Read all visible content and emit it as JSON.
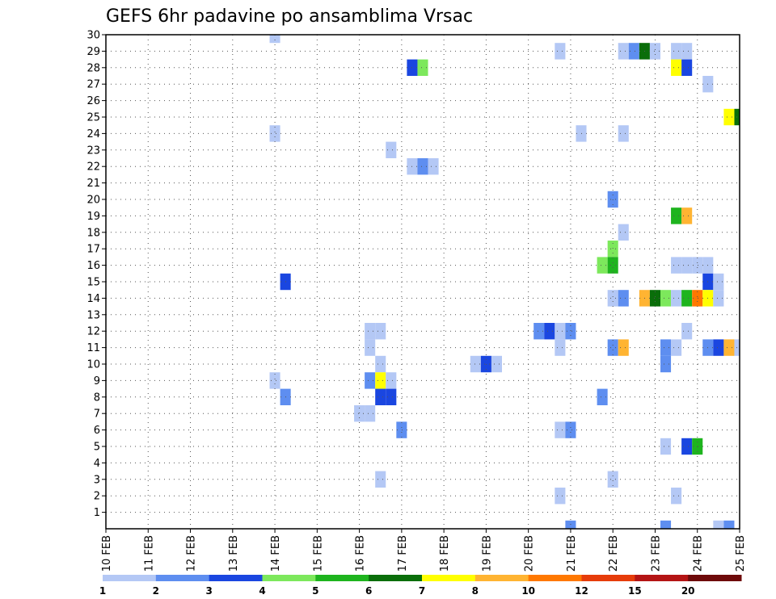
{
  "chart_data": {
    "type": "heatmap",
    "title": "GEFS 6hr padavine po ansamblima Vrsac",
    "xlabel": "",
    "ylabel": "",
    "x_tick_labels": [
      "10 FEB",
      "11 FEB",
      "12 FEB",
      "13 FEB",
      "14 FEB",
      "15 FEB",
      "16 FEB",
      "17 FEB",
      "18 FEB",
      "19 FEB",
      "20 FEB",
      "21 FEB",
      "22 FEB",
      "23 FEB",
      "24 FEB",
      "25 FEB"
    ],
    "xlim": [
      0,
      15
    ],
    "ylim": [
      0,
      30
    ],
    "y_ticks": [
      1,
      2,
      3,
      4,
      5,
      6,
      7,
      8,
      9,
      10,
      11,
      12,
      13,
      14,
      15,
      16,
      17,
      18,
      19,
      20,
      21,
      22,
      23,
      24,
      25,
      26,
      27,
      28,
      29,
      30
    ],
    "x_step": 0.25,
    "grid": true,
    "colorbar": {
      "labels": [
        "1",
        "2",
        "3",
        "4",
        "5",
        "6",
        "7",
        "8",
        "10",
        "12",
        "15",
        "20"
      ],
      "colors": [
        "#b4c8f5",
        "#5e8ef0",
        "#1a46e0",
        "#7de85c",
        "#1eb41e",
        "#0a6e0a",
        "#ffff00",
        "#ffb432",
        "#ff7800",
        "#e63c0a",
        "#b41414",
        "#6e0a0a"
      ]
    },
    "cells": [
      {
        "x": 4.0,
        "m": 30,
        "v": 1
      },
      {
        "x": 10.75,
        "m": 29,
        "v": 1
      },
      {
        "x": 12.25,
        "m": 29,
        "v": 1
      },
      {
        "x": 12.5,
        "m": 29,
        "v": 2
      },
      {
        "x": 12.75,
        "m": 29,
        "v": 6
      },
      {
        "x": 13.0,
        "m": 29,
        "v": 1
      },
      {
        "x": 13.5,
        "m": 29,
        "v": 1
      },
      {
        "x": 13.75,
        "m": 29,
        "v": 1
      },
      {
        "x": 7.25,
        "m": 28,
        "v": 3
      },
      {
        "x": 7.5,
        "m": 28,
        "v": 4
      },
      {
        "x": 13.5,
        "m": 28,
        "v": 7
      },
      {
        "x": 13.75,
        "m": 28,
        "v": 3
      },
      {
        "x": 14.25,
        "m": 27,
        "v": 1
      },
      {
        "x": 14.75,
        "m": 25,
        "v": 7
      },
      {
        "x": 15.0,
        "m": 25,
        "v": 6
      },
      {
        "x": 4.0,
        "m": 24,
        "v": 1
      },
      {
        "x": 11.25,
        "m": 24,
        "v": 1
      },
      {
        "x": 12.25,
        "m": 24,
        "v": 1
      },
      {
        "x": 6.75,
        "m": 23,
        "v": 1
      },
      {
        "x": 7.25,
        "m": 22,
        "v": 1
      },
      {
        "x": 7.5,
        "m": 22,
        "v": 2
      },
      {
        "x": 7.75,
        "m": 22,
        "v": 1
      },
      {
        "x": 12.0,
        "m": 20,
        "v": 2
      },
      {
        "x": 13.5,
        "m": 19,
        "v": 5
      },
      {
        "x": 13.75,
        "m": 19,
        "v": 8
      },
      {
        "x": 12.25,
        "m": 18,
        "v": 1
      },
      {
        "x": 12.0,
        "m": 17,
        "v": 4
      },
      {
        "x": 11.75,
        "m": 16,
        "v": 4
      },
      {
        "x": 12.0,
        "m": 16,
        "v": 5
      },
      {
        "x": 13.5,
        "m": 16,
        "v": 1
      },
      {
        "x": 13.75,
        "m": 16,
        "v": 1
      },
      {
        "x": 14.0,
        "m": 16,
        "v": 1
      },
      {
        "x": 14.25,
        "m": 16,
        "v": 1
      },
      {
        "x": 4.25,
        "m": 15,
        "v": 3
      },
      {
        "x": 14.25,
        "m": 15,
        "v": 3
      },
      {
        "x": 14.5,
        "m": 15,
        "v": 1
      },
      {
        "x": 12.0,
        "m": 14,
        "v": 1
      },
      {
        "x": 12.25,
        "m": 14,
        "v": 2
      },
      {
        "x": 12.75,
        "m": 14,
        "v": 8
      },
      {
        "x": 13.0,
        "m": 14,
        "v": 6
      },
      {
        "x": 13.25,
        "m": 14,
        "v": 4
      },
      {
        "x": 13.5,
        "m": 14,
        "v": 1
      },
      {
        "x": 13.75,
        "m": 14,
        "v": 5
      },
      {
        "x": 14.0,
        "m": 14,
        "v": 10
      },
      {
        "x": 14.25,
        "m": 14,
        "v": 7
      },
      {
        "x": 14.5,
        "m": 14,
        "v": 1
      },
      {
        "x": 6.25,
        "m": 12,
        "v": 1
      },
      {
        "x": 6.5,
        "m": 12,
        "v": 1
      },
      {
        "x": 10.25,
        "m": 12,
        "v": 2
      },
      {
        "x": 10.5,
        "m": 12,
        "v": 3
      },
      {
        "x": 10.75,
        "m": 12,
        "v": 1
      },
      {
        "x": 11.0,
        "m": 12,
        "v": 2
      },
      {
        "x": 13.75,
        "m": 12,
        "v": 1
      },
      {
        "x": 6.25,
        "m": 11,
        "v": 1
      },
      {
        "x": 10.75,
        "m": 11,
        "v": 1
      },
      {
        "x": 12.0,
        "m": 11,
        "v": 2
      },
      {
        "x": 12.25,
        "m": 11,
        "v": 8
      },
      {
        "x": 13.25,
        "m": 11,
        "v": 2
      },
      {
        "x": 13.5,
        "m": 11,
        "v": 1
      },
      {
        "x": 14.25,
        "m": 11,
        "v": 2
      },
      {
        "x": 14.5,
        "m": 11,
        "v": 3
      },
      {
        "x": 14.75,
        "m": 11,
        "v": 8
      },
      {
        "x": 15.0,
        "m": 11,
        "v": 1
      },
      {
        "x": 6.5,
        "m": 10,
        "v": 1
      },
      {
        "x": 8.75,
        "m": 10,
        "v": 1
      },
      {
        "x": 9.0,
        "m": 10,
        "v": 3
      },
      {
        "x": 9.25,
        "m": 10,
        "v": 1
      },
      {
        "x": 13.25,
        "m": 10,
        "v": 2
      },
      {
        "x": 4.0,
        "m": 9,
        "v": 1
      },
      {
        "x": 6.25,
        "m": 9,
        "v": 2
      },
      {
        "x": 6.5,
        "m": 9,
        "v": 7
      },
      {
        "x": 6.75,
        "m": 9,
        "v": 1
      },
      {
        "x": 4.25,
        "m": 8,
        "v": 2
      },
      {
        "x": 6.5,
        "m": 8,
        "v": 3
      },
      {
        "x": 6.75,
        "m": 8,
        "v": 3
      },
      {
        "x": 11.75,
        "m": 8,
        "v": 2
      },
      {
        "x": 6.0,
        "m": 7,
        "v": 1
      },
      {
        "x": 6.25,
        "m": 7,
        "v": 1
      },
      {
        "x": 7.0,
        "m": 6,
        "v": 2
      },
      {
        "x": 10.75,
        "m": 6,
        "v": 1
      },
      {
        "x": 11.0,
        "m": 6,
        "v": 2
      },
      {
        "x": 13.25,
        "m": 5,
        "v": 1
      },
      {
        "x": 13.75,
        "m": 5,
        "v": 3
      },
      {
        "x": 14.0,
        "m": 5,
        "v": 5
      },
      {
        "x": 6.5,
        "m": 3,
        "v": 1
      },
      {
        "x": 12.0,
        "m": 3,
        "v": 1
      },
      {
        "x": 10.75,
        "m": 2,
        "v": 1
      },
      {
        "x": 13.5,
        "m": 2,
        "v": 1
      },
      {
        "x": 11.0,
        "m": 0,
        "v": 2
      },
      {
        "x": 13.25,
        "m": 0,
        "v": 2
      },
      {
        "x": 14.5,
        "m": 0,
        "v": 1
      },
      {
        "x": 14.75,
        "m": 0,
        "v": 2
      }
    ]
  }
}
